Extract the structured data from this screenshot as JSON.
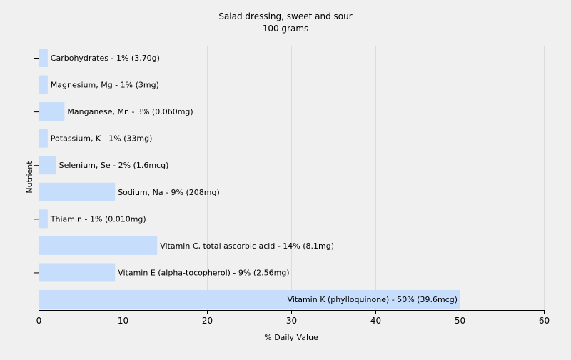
{
  "chart_data": {
    "type": "bar",
    "orientation": "horizontal",
    "title": "Salad dressing, sweet and sour",
    "subtitle": "100 grams",
    "xlabel": "% Daily Value",
    "ylabel": "Nutrient",
    "xlim": [
      0,
      60
    ],
    "xticks": [
      0,
      10,
      20,
      30,
      40,
      50,
      60
    ],
    "grid": true,
    "bar_color": "#c6ddfb",
    "bars": [
      {
        "label": "Carbohydrates - 1% (3.70g)",
        "value": 1
      },
      {
        "label": "Magnesium, Mg - 1% (3mg)",
        "value": 1
      },
      {
        "label": "Manganese, Mn - 3% (0.060mg)",
        "value": 3
      },
      {
        "label": "Potassium, K - 1% (33mg)",
        "value": 1
      },
      {
        "label": "Selenium, Se - 2% (1.6mcg)",
        "value": 2
      },
      {
        "label": "Sodium, Na - 9% (208mg)",
        "value": 9
      },
      {
        "label": "Thiamin - 1% (0.010mg)",
        "value": 1
      },
      {
        "label": "Vitamin C, total ascorbic acid - 14% (8.1mg)",
        "value": 14
      },
      {
        "label": "Vitamin E (alpha-tocopherol) - 9% (2.56mg)",
        "value": 9
      },
      {
        "label": "Vitamin K (phylloquinone) - 50% (39.6mcg)",
        "value": 50
      }
    ]
  }
}
